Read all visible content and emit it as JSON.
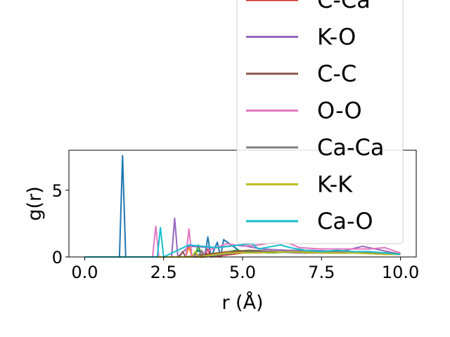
{
  "chart_data": {
    "type": "line",
    "xlabel": "r (Å)",
    "ylabel": "g(r)",
    "xlim": [
      -0.5,
      10.5
    ],
    "ylim": [
      0,
      8
    ],
    "xticks": [
      0.0,
      2.5,
      5.0,
      7.5,
      10.0
    ],
    "xtick_labels": [
      "0.0",
      "2.5",
      "5.0",
      "7.5",
      "10.0"
    ],
    "yticks": [
      0,
      5
    ],
    "ytick_labels": [
      "0",
      "5"
    ],
    "grid": false,
    "legend_placement": "upper-right, overflowing above the axes",
    "series": [
      {
        "color": "#1f77b4",
        "x": [
          0,
          1.1,
          1.2,
          1.3,
          3.4,
          3.6,
          3.8,
          3.9,
          4.0,
          4.2,
          4.3,
          4.4,
          5.0,
          5.5,
          6.0,
          6.5,
          7.0,
          7.5,
          8.0,
          8.5,
          9.0,
          9.5,
          10.0
        ],
        "values": [
          0,
          0,
          7.6,
          0,
          0,
          0.5,
          0,
          1.5,
          0,
          1.1,
          0,
          1.3,
          0.3,
          0.4,
          0.3,
          0.5,
          0.3,
          0.4,
          0.3,
          0.4,
          0.3,
          0.3,
          0.2
        ]
      },
      {
        "color": "#ff7f0e",
        "x": [
          0,
          3.2,
          3.3,
          3.4,
          4.5,
          5.5,
          6.5,
          7.5,
          8.5,
          9.5,
          10.0
        ],
        "values": [
          0,
          0,
          0.8,
          0,
          0.4,
          0.3,
          0.4,
          0.3,
          0.3,
          0.2,
          0.2
        ]
      },
      {
        "color": "#2ca02c",
        "x": [
          0,
          3.5,
          3.6,
          3.7,
          4.8,
          5.8,
          6.8,
          7.8,
          8.8,
          9.8,
          10.0
        ],
        "values": [
          0,
          0,
          0.9,
          0,
          0.5,
          0.3,
          0.4,
          0.3,
          0.3,
          0.3,
          0.2
        ]
      },
      {
        "name": "C-Ca",
        "color": "#d62728",
        "x": [
          0,
          3.8,
          3.9,
          4.0,
          5.0,
          6.0,
          7.0,
          8.0,
          9.0,
          10.0
        ],
        "values": [
          0,
          0,
          0.6,
          0,
          0.3,
          0.4,
          0.3,
          0.4,
          0.3,
          0.2
        ]
      },
      {
        "name": "K-O",
        "color": "#9467bd",
        "x": [
          0,
          2.75,
          2.85,
          2.95,
          3.3,
          4.1,
          4.9,
          5.6,
          6.4,
          7.2,
          8.1,
          8.8,
          9.6,
          10.0
        ],
        "values": [
          0,
          0,
          2.9,
          0,
          0.8,
          0.7,
          0.9,
          0.6,
          0.5,
          0.5,
          0.4,
          0.8,
          0.4,
          0.2
        ]
      },
      {
        "name": "C-C",
        "color": "#8c564b",
        "x": [
          0,
          3.0,
          3.1,
          3.2,
          4.2,
          5.2,
          6.2,
          7.2,
          8.2,
          9.2,
          10.0
        ],
        "values": [
          0,
          0,
          0.4,
          0,
          0.3,
          0.5,
          0.4,
          0.3,
          0.3,
          0.3,
          0.2
        ]
      },
      {
        "name": "O-O",
        "color": "#e377c2",
        "x": [
          0,
          2.15,
          2.25,
          2.35,
          3.2,
          3.3,
          3.4,
          4.5,
          5.0,
          5.5,
          6.0,
          6.3,
          6.8,
          7.5,
          8.3,
          9.0,
          9.5,
          10.0
        ],
        "values": [
          0,
          0,
          2.3,
          0,
          0,
          2.1,
          0,
          1.0,
          0.8,
          0.9,
          1.1,
          1.2,
          0.7,
          0.6,
          0.6,
          0.6,
          0.7,
          0.3
        ]
      },
      {
        "name": "Ca-Ca",
        "color": "#7f7f7f",
        "x": [
          0,
          3.6,
          3.7,
          3.8,
          4.8,
          5.8,
          6.8,
          7.8,
          8.8,
          9.8,
          10.0
        ],
        "values": [
          0,
          0,
          0.5,
          0,
          0.3,
          0.4,
          0.3,
          0.4,
          0.3,
          0.3,
          0.2
        ]
      },
      {
        "name": "K-K",
        "color": "#bcbd22",
        "x": [
          0,
          3.4,
          3.5,
          3.6,
          4.5,
          5.5,
          6.5,
          7.5,
          8.5,
          9.5,
          10.0
        ],
        "values": [
          0,
          0,
          0.4,
          0,
          0.3,
          0.3,
          0.4,
          0.3,
          0.3,
          0.2,
          0.2
        ]
      },
      {
        "name": "Ca-O",
        "color": "#17becf",
        "x": [
          0,
          2.3,
          2.4,
          2.5,
          3.3,
          4.2,
          5.3,
          5.5,
          6.2,
          6.5,
          7.0,
          7.5,
          8.0,
          8.5,
          9.0,
          9.5,
          10.0
        ],
        "values": [
          0,
          0,
          2.2,
          0,
          0.9,
          0.7,
          1.0,
          0.6,
          0.9,
          0.7,
          0.5,
          0.4,
          0.5,
          0.4,
          0.4,
          0.3,
          0.2
        ]
      }
    ],
    "legend": [
      "C-Ca",
      "K-O",
      "C-C",
      "O-O",
      "Ca-Ca",
      "K-K",
      "Ca-O"
    ]
  }
}
